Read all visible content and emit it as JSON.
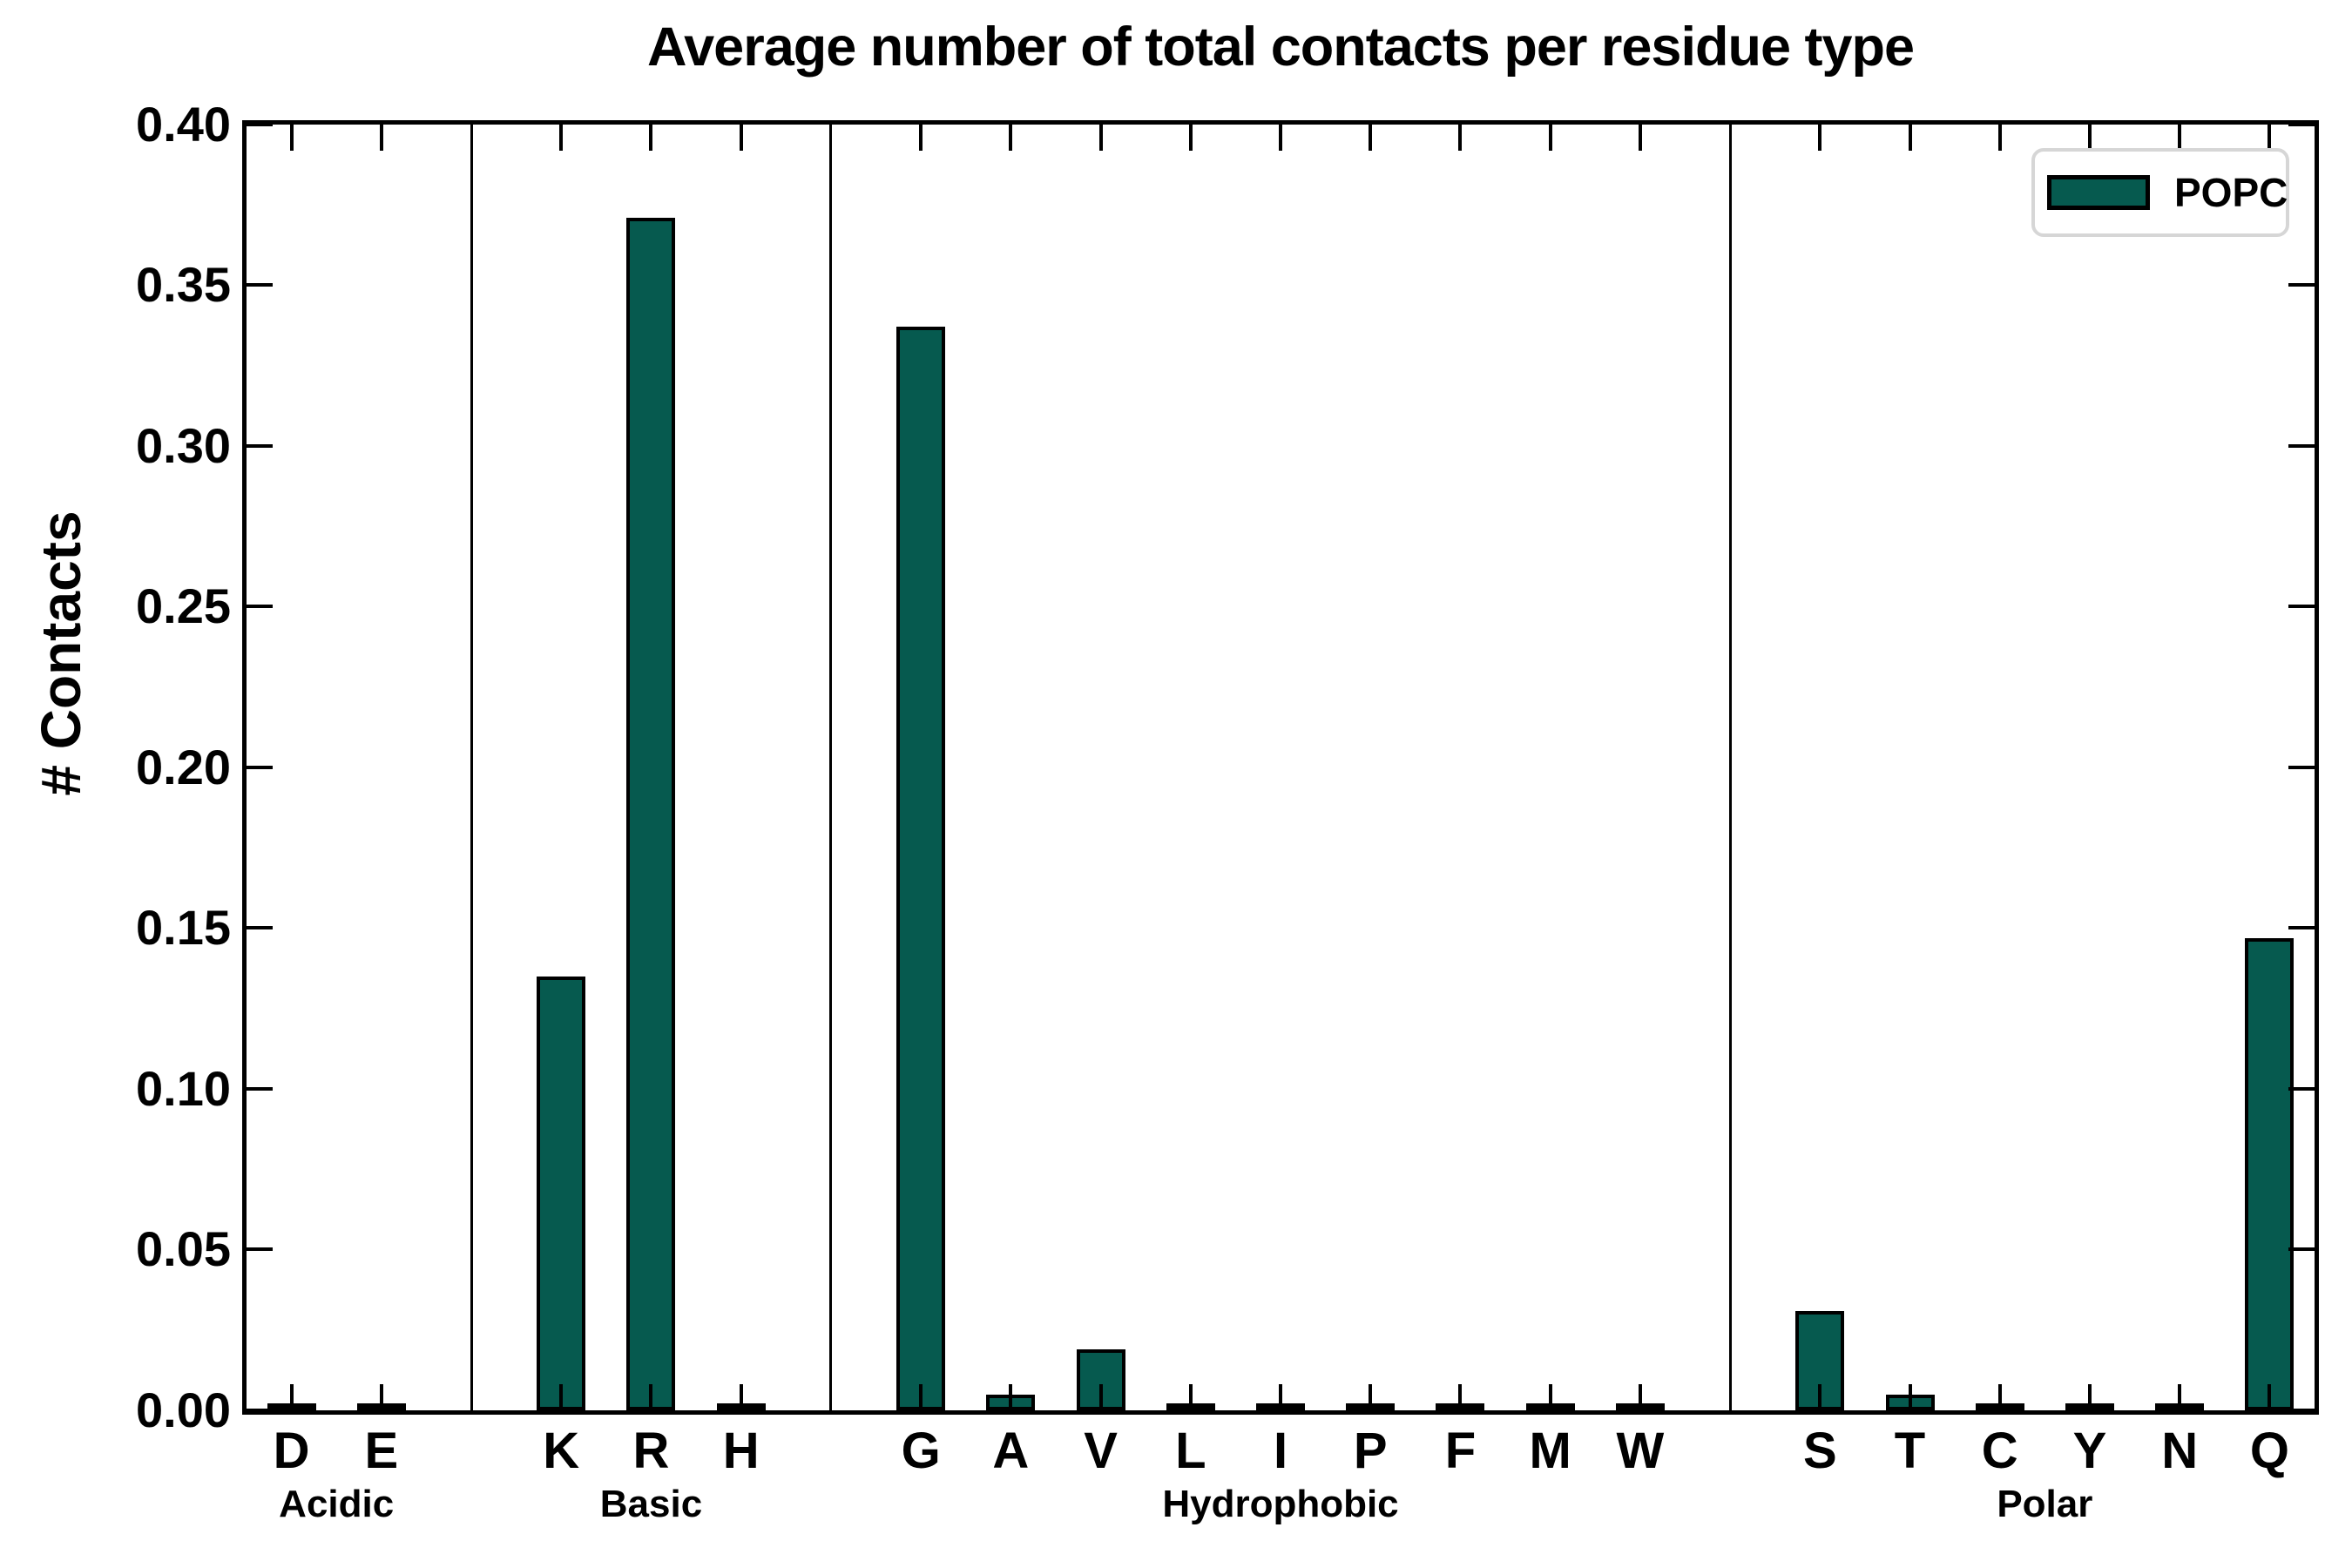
{
  "title": "Average number of total contacts per residue type",
  "ylabel": "# Contacts",
  "legend": {
    "label": "POPC"
  },
  "colors": {
    "bar_fill": "#065A4F",
    "bar_edge": "#000000",
    "axis": "#000000",
    "legend_border": "#d6d6d6",
    "background": "#ffffff"
  },
  "chart_data": {
    "type": "bar",
    "title": "Average number of total contacts per residue type",
    "xlabel": "",
    "ylabel": "# Contacts",
    "ylim": [
      0.0,
      0.4
    ],
    "ytick_step": 0.05,
    "ytick_labels": [
      "0.00",
      "0.05",
      "0.10",
      "0.15",
      "0.20",
      "0.25",
      "0.30",
      "0.35",
      "0.40"
    ],
    "grid": false,
    "legend": {
      "label": "POPC",
      "position": "upper right"
    },
    "categories": [
      "D",
      "E",
      "K",
      "R",
      "H",
      "G",
      "A",
      "V",
      "L",
      "I",
      "P",
      "F",
      "M",
      "W",
      "S",
      "T",
      "C",
      "Y",
      "N",
      "Q"
    ],
    "values": [
      0.001,
      0.001,
      0.135,
      0.371,
      0.001,
      0.337,
      0.005,
      0.019,
      0.001,
      0.001,
      0.001,
      0.001,
      0.001,
      0.001,
      0.031,
      0.005,
      0.001,
      0.001,
      0.001,
      0.147
    ],
    "series": [
      {
        "name": "POPC",
        "color": "#065A4F"
      }
    ],
    "groups": [
      {
        "label": "Acidic",
        "members": [
          "D",
          "E"
        ]
      },
      {
        "label": "Basic",
        "members": [
          "K",
          "R",
          "H"
        ]
      },
      {
        "label": "Hydrophobic",
        "members": [
          "G",
          "A",
          "V",
          "L",
          "I",
          "P",
          "F",
          "M",
          "W"
        ]
      },
      {
        "label": "Polar",
        "members": [
          "S",
          "T",
          "C",
          "Y",
          "N",
          "Q"
        ]
      }
    ]
  }
}
